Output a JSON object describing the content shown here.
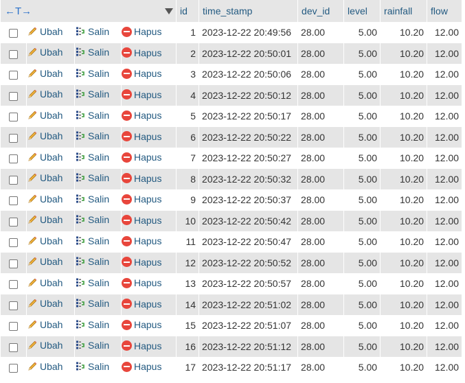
{
  "header": {
    "nav_arrows": "←T→",
    "columns": [
      "id",
      "time_stamp",
      "dev_id",
      "level",
      "rainfall",
      "flow"
    ]
  },
  "actions": {
    "edit_label": "Ubah",
    "copy_label": "Salin",
    "delete_label": "Hapus"
  },
  "colors": {
    "link": "#235a81",
    "row_alt": "#e5e5e5",
    "header_bg": "#e6e6e6",
    "delete_icon": "#e8463c"
  },
  "rows": [
    {
      "id": "1",
      "time_stamp": "2023-12-22 20:49:56",
      "dev_id": "28.00",
      "level": "5.00",
      "rainfall": "10.20",
      "flow": "12.00"
    },
    {
      "id": "2",
      "time_stamp": "2023-12-22 20:50:01",
      "dev_id": "28.00",
      "level": "5.00",
      "rainfall": "10.20",
      "flow": "12.00"
    },
    {
      "id": "3",
      "time_stamp": "2023-12-22 20:50:06",
      "dev_id": "28.00",
      "level": "5.00",
      "rainfall": "10.20",
      "flow": "12.00"
    },
    {
      "id": "4",
      "time_stamp": "2023-12-22 20:50:12",
      "dev_id": "28.00",
      "level": "5.00",
      "rainfall": "10.20",
      "flow": "12.00"
    },
    {
      "id": "5",
      "time_stamp": "2023-12-22 20:50:17",
      "dev_id": "28.00",
      "level": "5.00",
      "rainfall": "10.20",
      "flow": "12.00"
    },
    {
      "id": "6",
      "time_stamp": "2023-12-22 20:50:22",
      "dev_id": "28.00",
      "level": "5.00",
      "rainfall": "10.20",
      "flow": "12.00"
    },
    {
      "id": "7",
      "time_stamp": "2023-12-22 20:50:27",
      "dev_id": "28.00",
      "level": "5.00",
      "rainfall": "10.20",
      "flow": "12.00"
    },
    {
      "id": "8",
      "time_stamp": "2023-12-22 20:50:32",
      "dev_id": "28.00",
      "level": "5.00",
      "rainfall": "10.20",
      "flow": "12.00"
    },
    {
      "id": "9",
      "time_stamp": "2023-12-22 20:50:37",
      "dev_id": "28.00",
      "level": "5.00",
      "rainfall": "10.20",
      "flow": "12.00"
    },
    {
      "id": "10",
      "time_stamp": "2023-12-22 20:50:42",
      "dev_id": "28.00",
      "level": "5.00",
      "rainfall": "10.20",
      "flow": "12.00"
    },
    {
      "id": "11",
      "time_stamp": "2023-12-22 20:50:47",
      "dev_id": "28.00",
      "level": "5.00",
      "rainfall": "10.20",
      "flow": "12.00"
    },
    {
      "id": "12",
      "time_stamp": "2023-12-22 20:50:52",
      "dev_id": "28.00",
      "level": "5.00",
      "rainfall": "10.20",
      "flow": "12.00"
    },
    {
      "id": "13",
      "time_stamp": "2023-12-22 20:50:57",
      "dev_id": "28.00",
      "level": "5.00",
      "rainfall": "10.20",
      "flow": "12.00"
    },
    {
      "id": "14",
      "time_stamp": "2023-12-22 20:51:02",
      "dev_id": "28.00",
      "level": "5.00",
      "rainfall": "10.20",
      "flow": "12.00"
    },
    {
      "id": "15",
      "time_stamp": "2023-12-22 20:51:07",
      "dev_id": "28.00",
      "level": "5.00",
      "rainfall": "10.20",
      "flow": "12.00"
    },
    {
      "id": "16",
      "time_stamp": "2023-12-22 20:51:12",
      "dev_id": "28.00",
      "level": "5.00",
      "rainfall": "10.20",
      "flow": "12.00"
    },
    {
      "id": "17",
      "time_stamp": "2023-12-22 20:51:17",
      "dev_id": "28.00",
      "level": "5.00",
      "rainfall": "10.20",
      "flow": "12.00"
    }
  ]
}
